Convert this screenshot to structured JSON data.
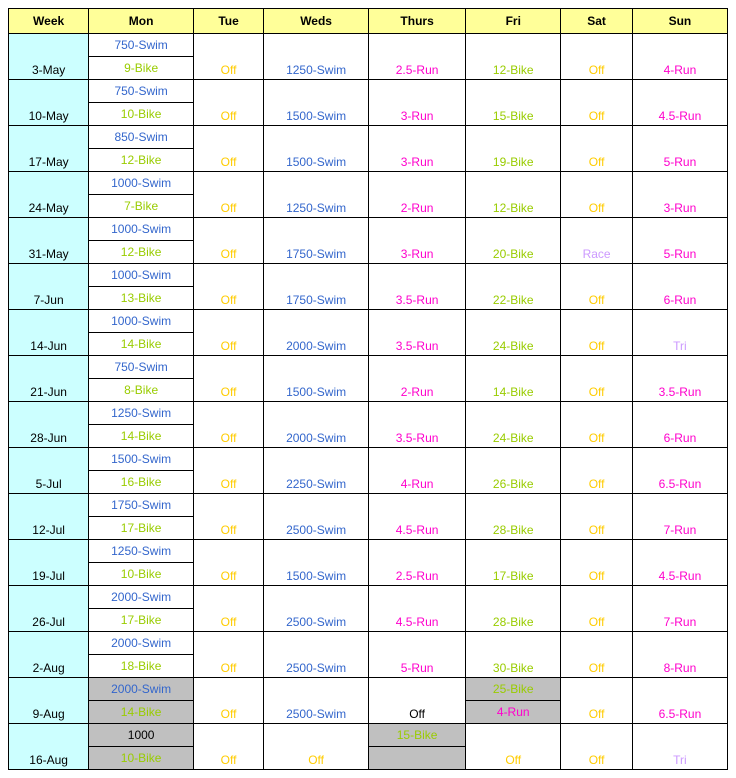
{
  "columns": [
    "Week",
    "Mon",
    "Tue",
    "Weds",
    "Thurs",
    "Fri",
    "Sat",
    "Sun"
  ],
  "col_widths": [
    "80",
    "110",
    "70",
    "110",
    "100",
    "100",
    "70",
    "100"
  ],
  "colors": {
    "header_bg": "#ffff99",
    "week_bg": "#ccffff",
    "gray_bg": "#c0c0c0",
    "swim": "#3366cc",
    "bike": "#99cc00",
    "off": "#ffcc00",
    "run": "#ff00cc",
    "race": "#cc99ff"
  },
  "rows": [
    {
      "week": "3-May",
      "mon": [
        "750-Swim",
        "9-Bike"
      ],
      "tue": "Off",
      "weds": "1250-Swim",
      "thurs": "2.5-Run",
      "fri": "12-Bike",
      "sat": "Off",
      "sun": "4-Run"
    },
    {
      "week": "10-May",
      "mon": [
        "750-Swim",
        "10-Bike"
      ],
      "tue": "Off",
      "weds": "1500-Swim",
      "thurs": "3-Run",
      "fri": "15-Bike",
      "sat": "Off",
      "sun": "4.5-Run"
    },
    {
      "week": "17-May",
      "mon": [
        "850-Swim",
        "12-Bike"
      ],
      "tue": "Off",
      "weds": "1500-Swim",
      "thurs": "3-Run",
      "fri": "19-Bike",
      "sat": "Off",
      "sun": "5-Run"
    },
    {
      "week": "24-May",
      "mon": [
        "1000-Swim",
        "7-Bike"
      ],
      "tue": "Off",
      "weds": "1250-Swim",
      "thurs": "2-Run",
      "fri": "12-Bike",
      "sat": "Off",
      "sun": "3-Run"
    },
    {
      "week": "31-May",
      "mon": [
        "1000-Swim",
        "12-Bike"
      ],
      "tue": "Off",
      "weds": "1750-Swim",
      "thurs": "3-Run",
      "fri": "20-Bike",
      "sat": "Race",
      "sat_class": "c-race",
      "sun": "5-Run"
    },
    {
      "week": "7-Jun",
      "mon": [
        "1000-Swim",
        "13-Bike"
      ],
      "tue": "Off",
      "weds": "1750-Swim",
      "thurs": "3.5-Run",
      "fri": "22-Bike",
      "sat": "Off",
      "sun": "6-Run"
    },
    {
      "week": "14-Jun",
      "mon": [
        "1000-Swim",
        "14-Bike"
      ],
      "tue": "Off",
      "weds": "2000-Swim",
      "thurs": "3.5-Run",
      "fri": "24-Bike",
      "sat": "Off",
      "sun": "Tri",
      "sun_class": "c-race"
    },
    {
      "week": "21-Jun",
      "mon": [
        "750-Swim",
        "8-Bike"
      ],
      "tue": "Off",
      "weds": "1500-Swim",
      "thurs": "2-Run",
      "fri": "14-Bike",
      "sat": "Off",
      "sun": "3.5-Run"
    },
    {
      "week": "28-Jun",
      "mon": [
        "1250-Swim",
        "14-Bike"
      ],
      "tue": "Off",
      "weds": "2000-Swim",
      "thurs": "3.5-Run",
      "fri": "24-Bike",
      "sat": "Off",
      "sun": "6-Run"
    },
    {
      "week": "5-Jul",
      "mon": [
        "1500-Swim",
        "16-Bike"
      ],
      "tue": "Off",
      "weds": "2250-Swim",
      "thurs": "4-Run",
      "fri": "26-Bike",
      "sat": "Off",
      "sun": "6.5-Run"
    },
    {
      "week": "12-Jul",
      "mon": [
        "1750-Swim",
        "17-Bike"
      ],
      "tue": "Off",
      "weds": "2500-Swim",
      "thurs": "4.5-Run",
      "fri": "28-Bike",
      "sat": "Off",
      "sun": "7-Run"
    },
    {
      "week": "19-Jul",
      "mon": [
        "1250-Swim",
        "10-Bike"
      ],
      "tue": "Off",
      "weds": "1500-Swim",
      "thurs": "2.5-Run",
      "fri": "17-Bike",
      "sat": "Off",
      "sun": "4.5-Run"
    },
    {
      "week": "26-Jul",
      "mon": [
        "2000-Swim",
        "17-Bike"
      ],
      "tue": "Off",
      "weds": "2500-Swim",
      "thurs": "4.5-Run",
      "fri": "28-Bike",
      "sat": "Off",
      "sun": "7-Run"
    },
    {
      "week": "2-Aug",
      "mon": [
        "2000-Swim",
        "18-Bike"
      ],
      "tue": "Off",
      "weds": "2500-Swim",
      "thurs": "5-Run",
      "fri": "30-Bike",
      "sat": "Off",
      "sun": "8-Run"
    },
    {
      "week": "9-Aug",
      "mon": [
        "2000-Swim",
        "14-Bike"
      ],
      "mon_gray": true,
      "tue": "Off",
      "weds": "2500-Swim",
      "thurs": "Off",
      "thurs_class": "c-black",
      "fri": [
        "25-Bike",
        "4-Run"
      ],
      "fri_gray": true,
      "sat": "Off",
      "sun": "6.5-Run"
    },
    {
      "week": "16-Aug",
      "mon": [
        "1000",
        "10-Bike"
      ],
      "mon_gray": true,
      "tue": "Off",
      "weds": "Off",
      "weds_class": "c-off",
      "thurs": [
        "15-Bike",
        ""
      ],
      "thurs_gray": true,
      "fri": "Off",
      "fri_class": "c-off",
      "sat": "Off",
      "sun": "Tri",
      "sun_class": "c-race"
    }
  ]
}
